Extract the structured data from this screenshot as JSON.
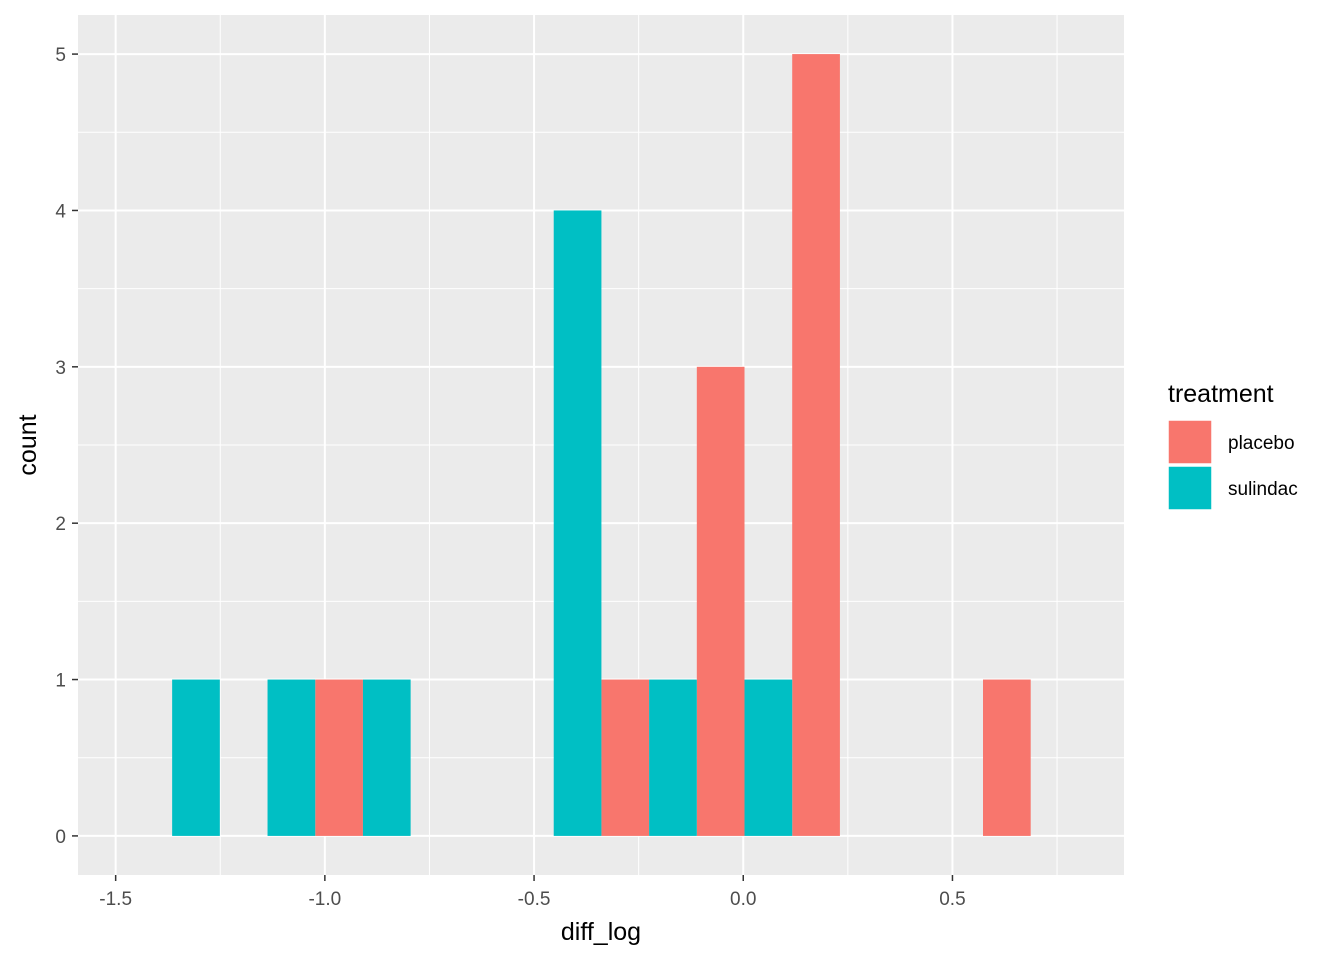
{
  "chart_data": {
    "type": "bar",
    "subtype": "histogram-dodged",
    "xlabel": "diff_log",
    "ylabel": "count",
    "xlim": [
      -1.59,
      0.91
    ],
    "ylim": [
      -0.25,
      5.25
    ],
    "x_ticks": [
      -1.5,
      -1.0,
      -0.5,
      0.0,
      0.5
    ],
    "x_tick_labels": [
      "-1.5",
      "-1.0",
      "-0.5",
      "0.0",
      "0.5"
    ],
    "y_ticks": [
      0,
      1,
      2,
      3,
      4,
      5
    ],
    "y_tick_labels": [
      "0",
      "1",
      "2",
      "3",
      "4",
      "5"
    ],
    "grid": true,
    "legend_position": "right",
    "legend_title": "treatment",
    "series": [
      {
        "name": "placebo",
        "color": "#F8766D",
        "bars": [
          {
            "x0": -1.023,
            "x1": -0.909,
            "count": 1
          },
          {
            "x0": -0.339,
            "x1": -0.225,
            "count": 1
          },
          {
            "x0": -0.111,
            "x1": 0.003,
            "count": 3
          },
          {
            "x0": 0.117,
            "x1": 0.231,
            "count": 5
          },
          {
            "x0": 0.573,
            "x1": 0.687,
            "count": 1
          }
        ]
      },
      {
        "name": "sulindac",
        "color": "#00BFC4",
        "bars": [
          {
            "x0": -1.365,
            "x1": -1.251,
            "count": 1
          },
          {
            "x0": -1.137,
            "x1": -1.023,
            "count": 1
          },
          {
            "x0": -0.909,
            "x1": -0.795,
            "count": 1
          },
          {
            "x0": -0.453,
            "x1": -0.339,
            "count": 4
          },
          {
            "x0": -0.225,
            "x1": -0.111,
            "count": 1
          },
          {
            "x0": 0.003,
            "x1": 0.117,
            "count": 1
          }
        ]
      }
    ]
  }
}
